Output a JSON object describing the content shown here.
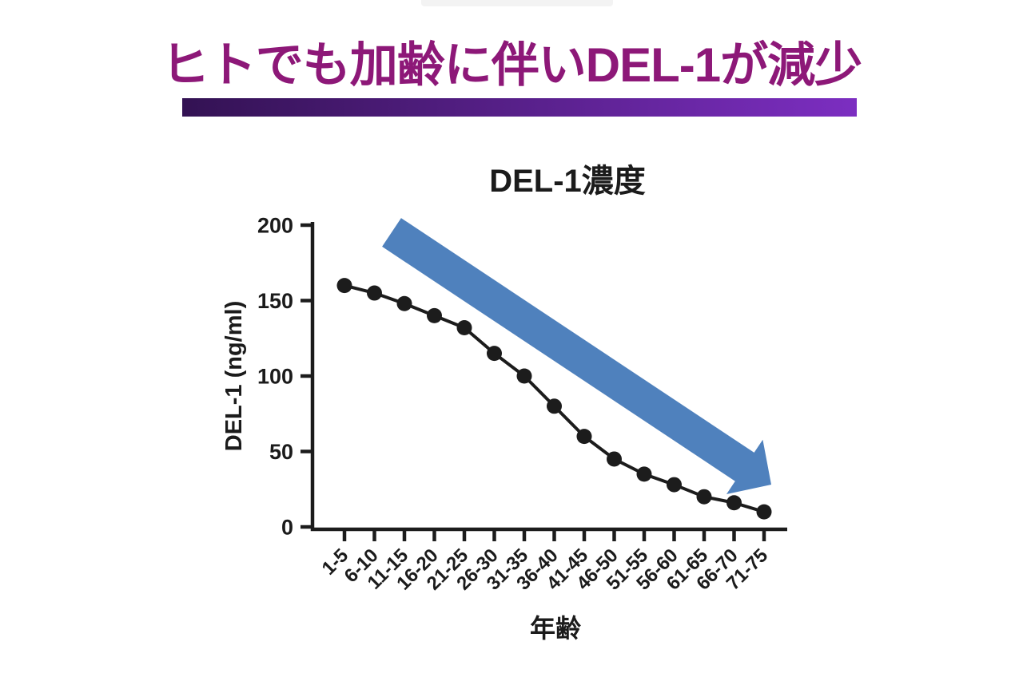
{
  "header": {
    "title": "ヒトでも加齢に伴いDEL-1が減少",
    "title_color": "#8d1878",
    "underline_gradient_left": "#331253",
    "underline_gradient_right": "#7c2ec1"
  },
  "decorations": {
    "top_notch_color": "#f3f3f3"
  },
  "chart_data": {
    "type": "line",
    "title": "DEL-1濃度",
    "xlabel": "年齢",
    "ylabel": "DEL-1 (ng/ml)",
    "categories": [
      "1-5",
      "6-10",
      "11-15",
      "16-20",
      "21-25",
      "26-30",
      "31-35",
      "36-40",
      "41-45",
      "46-50",
      "51-55",
      "56-60",
      "61-65",
      "66-70",
      "71-75"
    ],
    "values": [
      160,
      155,
      148,
      140,
      132,
      115,
      100,
      80,
      60,
      45,
      35,
      28,
      20,
      16,
      10
    ],
    "ylim": [
      0,
      200
    ],
    "yticks": [
      0,
      50,
      100,
      150,
      200
    ],
    "grid": false,
    "legend": "none",
    "marker": "filled-circle",
    "line_color": "#1c1c1c",
    "axis_color": "#1c1c1c",
    "annotation_arrow": {
      "meaning": "DEL-1 declines with age",
      "direction": "down-right",
      "color": "#4f81bd"
    }
  }
}
